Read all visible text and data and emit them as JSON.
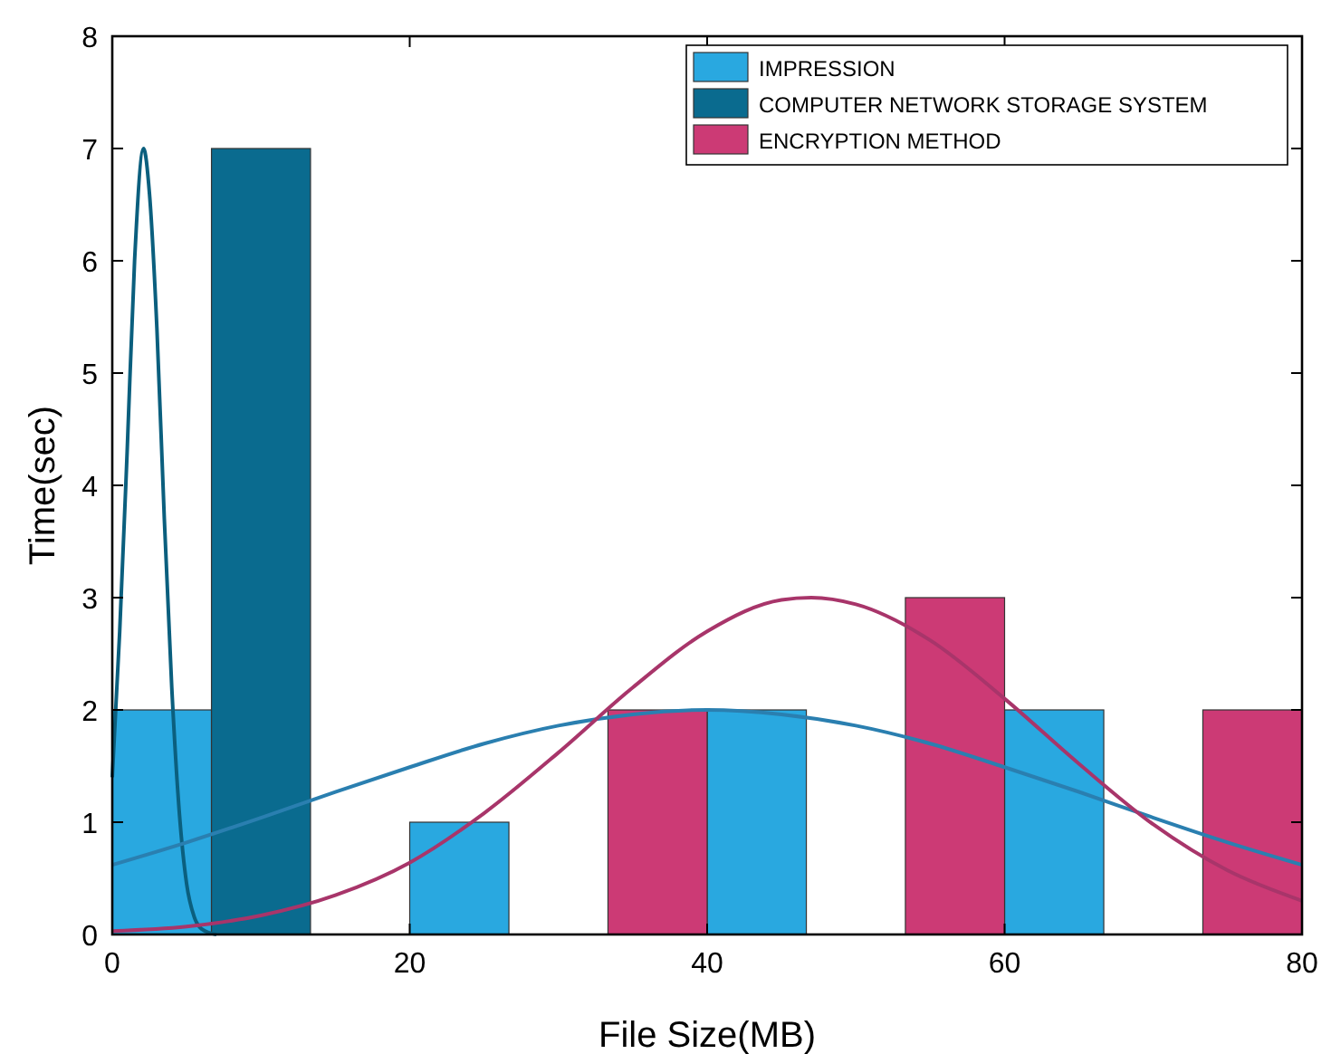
{
  "chart_data": {
    "type": "histogram",
    "xlabel": "File Size(MB)",
    "ylabel": "Time(sec)",
    "bins": [
      0,
      6.67,
      13.33,
      20,
      26.67,
      33.33,
      40,
      46.67,
      53.33,
      60,
      66.67,
      73.33,
      80
    ],
    "series": [
      {
        "name": "IMPRESSION",
        "color": "#29a8e0",
        "values": [
          2,
          null,
          null,
          1,
          null,
          null,
          2,
          null,
          null,
          2,
          null,
          null
        ]
      },
      {
        "name": "COMPUTER NETWORK STORAGE SYSTEM",
        "color": "#0a6b8f",
        "values": [
          null,
          7,
          null,
          null,
          null,
          null,
          null,
          null,
          null,
          null,
          null,
          null
        ]
      },
      {
        "name": "ENCRYPTION METHOD",
        "color": "#cc3a75",
        "values": [
          null,
          null,
          null,
          null,
          null,
          2,
          null,
          null,
          3,
          null,
          null,
          2
        ]
      },
      {
        "type": "line",
        "color": "#0b5f7e",
        "x": [
          0,
          0.5,
          1,
          1.5,
          2.1,
          2.5,
          3,
          3.5,
          4,
          4.5,
          5,
          5.5,
          6,
          7
        ],
        "values": [
          1.4,
          2.7,
          4.3,
          6.0,
          7,
          6.6,
          5.4,
          3.7,
          2.2,
          1.1,
          0.45,
          0.16,
          0.05,
          0
        ]
      },
      {
        "type": "line",
        "color": "#2a7fb0",
        "x": [
          0,
          5,
          10,
          15,
          20,
          25,
          30,
          35,
          40,
          45,
          50,
          55,
          60,
          65,
          70,
          75,
          80
        ],
        "values": [
          0.62,
          0.82,
          1.04,
          1.27,
          1.49,
          1.7,
          1.86,
          1.96,
          2,
          1.96,
          1.86,
          1.7,
          1.49,
          1.27,
          1.04,
          0.82,
          0.62
        ]
      },
      {
        "type": "line",
        "color": "#a8356a",
        "x": [
          0,
          5,
          10,
          15,
          20,
          25,
          30,
          35,
          40,
          45,
          47,
          50,
          55,
          60,
          65,
          70,
          75,
          80
        ],
        "values": [
          0.03,
          0.07,
          0.17,
          0.35,
          0.64,
          1.08,
          1.62,
          2.2,
          2.7,
          2.98,
          3,
          2.94,
          2.62,
          2.1,
          1.52,
          0.98,
          0.57,
          0.3
        ]
      }
    ],
    "xlim": [
      0,
      80
    ],
    "xticks": [
      0,
      20,
      40,
      60,
      80
    ],
    "ylim": [
      0,
      8
    ],
    "yticks": [
      0,
      1,
      2,
      3,
      4,
      5,
      6,
      7,
      8
    ],
    "grid": false,
    "legend": "top right"
  }
}
